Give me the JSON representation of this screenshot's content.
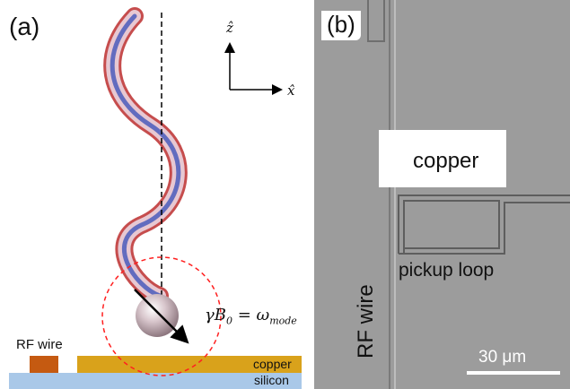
{
  "panel_a": {
    "label": "(a)",
    "axis_z": "ẑ",
    "axis_x": "x̂",
    "equation_lhs": "γB",
    "equation_sub0": "0",
    "equation_mid": " = ω",
    "equation_sub1": "mode",
    "rf_wire_label": "RF wire",
    "copper_label": "copper",
    "silicon_label": "silicon",
    "colors": {
      "copper": "#d9a21b",
      "silicon": "#a9c8e8",
      "rf_wire": "#c55a11",
      "helix_outer": "#e04040",
      "helix_inner": "#3a4fb0",
      "dashed_circle": "#ff2020"
    }
  },
  "panel_b": {
    "label": "(b)",
    "copper_label": "copper",
    "pickup_label": "pickup loop",
    "rf_wire_label": "RF wire",
    "scale_label": "30 μm",
    "colors": {
      "background": "#9a9a9a",
      "copper_pad": "#ffffff",
      "scale_bar": "#ffffff"
    }
  }
}
